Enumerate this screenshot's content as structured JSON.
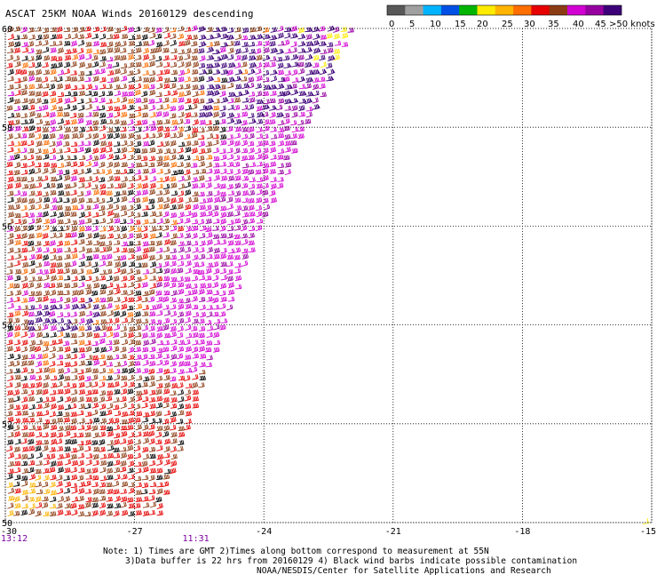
{
  "header": {
    "title": "ASCAT 25KM NOAA Winds 20160129 descending"
  },
  "legend": {
    "colors": [
      "#585858",
      "#a0a0a0",
      "#00b4ff",
      "#0050e6",
      "#00b400",
      "#ffeb00",
      "#ffb400",
      "#ff6e00",
      "#e60000",
      "#8c3c14",
      "#d200d2",
      "#9600a0",
      "#3c0078"
    ],
    "tick_labels": [
      "0",
      "5",
      "10",
      "15",
      "20",
      "25",
      "30",
      "35",
      "40",
      "45",
      ">50 knots"
    ]
  },
  "chart_data": {
    "type": "map",
    "lon_range": [
      -30,
      -15
    ],
    "lat_range": [
      50,
      60
    ],
    "x_tick_labels": [
      "-30",
      "-27",
      "-24",
      "-21",
      "-18",
      "-15"
    ],
    "y_tick_labels": [
      "60",
      "58",
      "56",
      "54",
      "52",
      "50"
    ],
    "grid": true,
    "swath_time_labels": [
      {
        "text": "13:12",
        "lon": -30
      },
      {
        "text": "11:31",
        "lon": -25.6
      }
    ]
  },
  "notes": {
    "line1": "Note: 1) Times are GMT 2)Times along bottom correspond to measurement at 55N",
    "line2": "3)Data buffer is 22 hrs from 20160129 4) Black wind barbs indicate possible contamination",
    "line3": "NOAA/NESDIS/Center for Satellite Applications and Research"
  }
}
